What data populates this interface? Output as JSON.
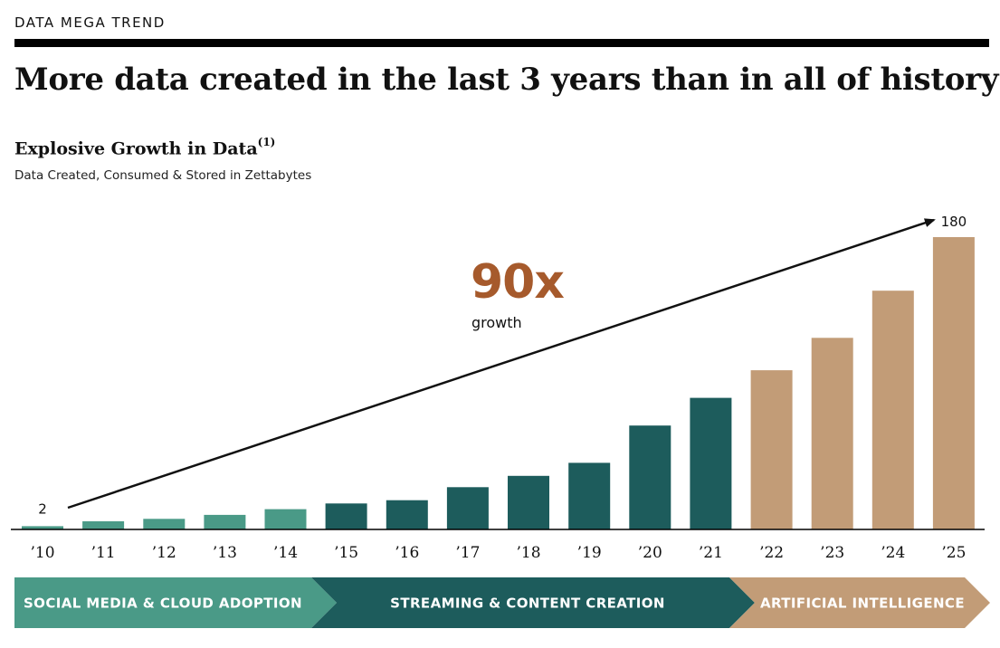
{
  "header": {
    "eyebrow": "DATA MEGA TREND",
    "headline": "More data created in the last 3 years than in all of history"
  },
  "chart_data": {
    "type": "bar",
    "title": "Explosive Growth in Data",
    "title_footnote": "(1)",
    "subtitle": "Data Created, Consumed & Stored in Zettabytes",
    "categories": [
      "’10",
      "’11",
      "’12",
      "’13",
      "’14",
      "’15",
      "’16",
      "’17",
      "’18",
      "’19",
      "’20",
      "’21",
      "’22",
      "’23",
      "’24",
      "’25"
    ],
    "values": [
      2,
      5,
      6.5,
      9,
      12.5,
      16,
      18,
      26,
      33,
      41,
      64,
      81,
      98,
      118,
      147,
      180
    ],
    "ylim": [
      0,
      180
    ],
    "grid": false,
    "data_labels": {
      "first": "2",
      "last": "180"
    },
    "bar_colors": [
      "#4a9a87",
      "#4a9a87",
      "#4a9a87",
      "#4a9a87",
      "#4a9a87",
      "#1d5c5c",
      "#1d5c5c",
      "#1d5c5c",
      "#1d5c5c",
      "#1d5c5c",
      "#1d5c5c",
      "#1d5c5c",
      "#c29c77",
      "#c29c77",
      "#c29c77",
      "#c29c77"
    ],
    "annotation": {
      "value": "90x",
      "label": "growth",
      "color": "#a65a2c"
    },
    "eras": [
      {
        "label": "SOCIAL MEDIA & CLOUD ADOPTION",
        "color": "#4a9a87"
      },
      {
        "label": "STREAMING & CONTENT CREATION",
        "color": "#1d5c5c"
      },
      {
        "label": "ARTIFICIAL INTELLIGENCE",
        "color": "#c29c77"
      }
    ]
  }
}
